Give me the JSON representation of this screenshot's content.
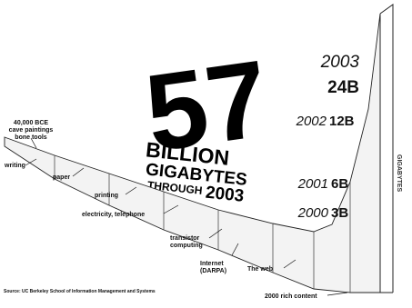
{
  "chart_data": {
    "type": "area",
    "headline": {
      "number": "57",
      "line1": "BILLION",
      "line2": "GIGABYTES",
      "line3a": "THROUGH",
      "line3b": "2003"
    },
    "source": "Source: UC Berkeley School of Information Management and Systems",
    "side_label": "GIGABYTES",
    "milestones": [
      {
        "id": "cave",
        "lines": [
          "40,000 BCE",
          "cave paintings",
          "bone tools"
        ]
      },
      {
        "id": "writing",
        "lines": [
          "writing"
        ]
      },
      {
        "id": "paper",
        "lines": [
          "paper"
        ]
      },
      {
        "id": "printing",
        "lines": [
          "printing"
        ]
      },
      {
        "id": "electricity",
        "lines": [
          "electricity, telephone"
        ]
      },
      {
        "id": "transistor",
        "lines": [
          "transistor",
          "computing"
        ]
      },
      {
        "id": "internet",
        "lines": [
          "Internet",
          "(DARPA)"
        ]
      },
      {
        "id": "web",
        "lines": [
          "The web"
        ]
      },
      {
        "id": "rich",
        "lines": [
          "2000 rich content"
        ]
      }
    ],
    "year_values": [
      {
        "year": "2000",
        "label": "3B",
        "value": 3
      },
      {
        "year": "2001",
        "label": "6B",
        "value": 6
      },
      {
        "year": "2002",
        "label": "12B",
        "value": 12
      },
      {
        "year": "2003",
        "label": "24B",
        "value": 24
      }
    ]
  }
}
